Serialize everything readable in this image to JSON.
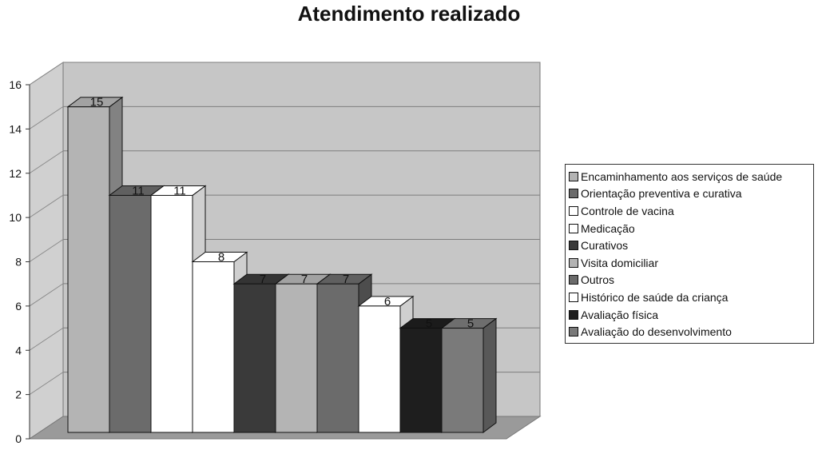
{
  "chart_data": {
    "type": "bar",
    "title": "Atendimento realizado",
    "xlabel": "",
    "ylabel": "",
    "ylim": [
      0,
      16
    ],
    "yticks": [
      0,
      2,
      4,
      6,
      8,
      10,
      12,
      14,
      16
    ],
    "grid": true,
    "legend_position": "right",
    "series": [
      {
        "name": "Encaminhamento aos serviços de saúde",
        "value": 15,
        "color": "#b4b4b4"
      },
      {
        "name": "Orientação preventiva e curativa",
        "value": 11,
        "color": "#6b6b6b"
      },
      {
        "name": "Controle de vacina",
        "value": 11,
        "color": "#ffffff"
      },
      {
        "name": "Medicação",
        "value": 8,
        "color": "#ffffff"
      },
      {
        "name": "Curativos",
        "value": 7,
        "color": "#3a3a3a"
      },
      {
        "name": "Visita domiciliar",
        "value": 7,
        "color": "#b4b4b4"
      },
      {
        "name": "Outros",
        "value": 7,
        "color": "#6b6b6b"
      },
      {
        "name": "Histórico de saúde da criança",
        "value": 6,
        "color": "#ffffff"
      },
      {
        "name": "Avaliação física",
        "value": 5,
        "color": "#1e1e1e"
      },
      {
        "name": "Avaliação do desenvolvimento",
        "value": 5,
        "color": "#7a7a7a"
      }
    ]
  }
}
